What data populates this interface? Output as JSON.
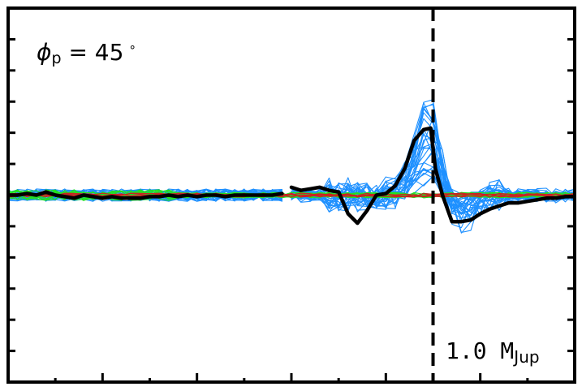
{
  "chart_data": {
    "type": "line",
    "title": "",
    "xlabel": "",
    "ylabel": "",
    "xlim": [
      0,
      1.2
    ],
    "ylim": [
      -1.2,
      1.2
    ],
    "x_ticks_major": [
      0.2,
      0.4,
      0.6,
      0.8,
      1.0
    ],
    "x_ticks_minor": [
      0.1,
      0.3,
      0.5,
      0.7,
      0.9,
      1.1
    ],
    "y_ticks": [
      -1.0,
      -0.8,
      -0.6,
      -0.4,
      -0.2,
      0.2,
      0.4,
      0.6,
      0.8,
      1.0
    ],
    "grid": false,
    "vline_x": 0.9,
    "annotation_phi": {
      "symbol": "ϕ",
      "sub": "p",
      "rest": " = 45",
      "deg": "∘"
    },
    "annotation_mass": {
      "value": "1.0 M",
      "sub": "Jup"
    },
    "colors": {
      "blue": "#1e90ff",
      "green": "#22e022",
      "red": "#cc2222",
      "black": "#000000"
    },
    "series": [
      {
        "color": "black",
        "segments": [
          {
            "x": [
              0,
              0.02,
              0.04,
              0.06,
              0.08,
              0.1,
              0.12,
              0.14,
              0.16,
              0.18,
              0.2,
              0.22,
              0.24,
              0.26,
              0.28,
              0.3,
              0.32,
              0.34,
              0.36,
              0.38,
              0.4,
              0.42,
              0.44,
              0.46,
              0.48,
              0.5,
              0.52,
              0.54,
              0.56,
              0.58
            ],
            "y": [
              0.0,
              0.0,
              0.01,
              0.0,
              0.02,
              0.0,
              -0.01,
              -0.02,
              0.0,
              -0.01,
              -0.02,
              -0.01,
              -0.02,
              -0.02,
              -0.02,
              -0.01,
              -0.01,
              0.0,
              -0.01,
              0.0,
              -0.01,
              0.0,
              0.0,
              -0.01,
              0.0,
              0.0,
              0.0,
              0.0,
              0.0,
              0.01
            ]
          },
          {
            "x": [
              0.6,
              0.62,
              0.64,
              0.66,
              0.68,
              0.7,
              0.72,
              0.74,
              0.76,
              0.78,
              0.8,
              0.82,
              0.84,
              0.86,
              0.88,
              0.895,
              0.905,
              0.92,
              0.94,
              0.96,
              0.98,
              1.0,
              1.02,
              1.04,
              1.06,
              1.08,
              1.1,
              1.12,
              1.14,
              1.16,
              1.18,
              1.2
            ],
            "y": [
              0.05,
              0.03,
              0.04,
              0.05,
              0.03,
              0.02,
              -0.12,
              -0.18,
              -0.1,
              0.0,
              0.01,
              0.06,
              0.17,
              0.35,
              0.42,
              0.43,
              0.17,
              0.0,
              -0.17,
              -0.17,
              -0.16,
              -0.12,
              -0.09,
              -0.07,
              -0.05,
              -0.05,
              -0.04,
              -0.03,
              -0.02,
              -0.02,
              -0.01,
              -0.01
            ]
          }
        ]
      }
    ]
  }
}
